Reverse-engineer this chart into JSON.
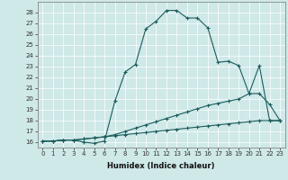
{
  "xlabel": "Humidex (Indice chaleur)",
  "bg_color": "#cfe8e8",
  "line_color": "#1a5c5c",
  "xlim": [
    -0.5,
    23.5
  ],
  "ylim": [
    15.5,
    29.0
  ],
  "yticks": [
    16,
    17,
    18,
    19,
    20,
    21,
    22,
    23,
    24,
    25,
    26,
    27,
    28
  ],
  "xticks": [
    0,
    1,
    2,
    3,
    4,
    5,
    6,
    7,
    8,
    9,
    10,
    11,
    12,
    13,
    14,
    15,
    16,
    17,
    18,
    19,
    20,
    21,
    22,
    23
  ],
  "curve1_x": [
    0,
    1,
    2,
    3,
    4,
    5,
    6,
    7,
    8,
    9,
    10,
    11,
    12,
    13,
    14,
    15,
    16,
    17,
    18,
    19,
    20,
    21,
    22,
    23
  ],
  "curve1_y": [
    16.1,
    16.1,
    16.2,
    16.2,
    16.0,
    15.9,
    16.1,
    19.8,
    22.5,
    23.2,
    26.5,
    27.2,
    28.2,
    28.2,
    27.5,
    27.5,
    26.6,
    23.4,
    23.5,
    23.1,
    20.5,
    23.1,
    18.0,
    18.0
  ],
  "curve2_x": [
    0,
    1,
    2,
    3,
    4,
    5,
    6,
    7,
    8,
    9,
    10,
    11,
    12,
    13,
    14,
    15,
    16,
    17,
    18,
    19,
    20,
    21,
    22,
    23
  ],
  "curve2_y": [
    16.1,
    16.1,
    16.2,
    16.2,
    16.3,
    16.4,
    16.5,
    16.7,
    17.0,
    17.3,
    17.6,
    17.9,
    18.2,
    18.5,
    18.8,
    19.1,
    19.4,
    19.6,
    19.8,
    20.0,
    20.5,
    20.5,
    19.5,
    18.0
  ],
  "curve3_x": [
    0,
    1,
    2,
    3,
    4,
    5,
    6,
    7,
    8,
    9,
    10,
    11,
    12,
    13,
    14,
    15,
    16,
    17,
    18,
    19,
    20,
    21,
    22,
    23
  ],
  "curve3_y": [
    16.1,
    16.1,
    16.2,
    16.2,
    16.3,
    16.4,
    16.5,
    16.6,
    16.7,
    16.8,
    16.9,
    17.0,
    17.1,
    17.2,
    17.3,
    17.4,
    17.5,
    17.6,
    17.7,
    17.8,
    17.9,
    18.0,
    18.0,
    18.0
  ]
}
